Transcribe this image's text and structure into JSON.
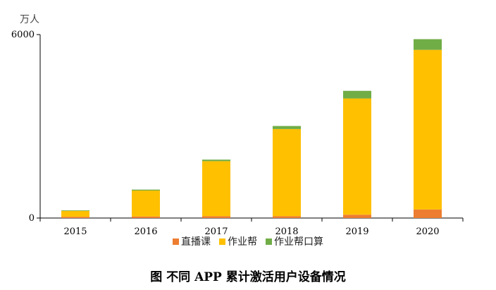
{
  "chart_data": {
    "type": "bar",
    "stacked": true,
    "unit": "万人",
    "categories": [
      "2015",
      "2016",
      "2017",
      "2018",
      "2019",
      "2020"
    ],
    "series": [
      {
        "name": "直播课",
        "color": "#ED7D31",
        "values": [
          40,
          50,
          60,
          60,
          110,
          280
        ]
      },
      {
        "name": "作业帮",
        "color": "#FFC000",
        "values": [
          190,
          850,
          1800,
          2850,
          3800,
          5220
        ]
      },
      {
        "name": "作业帮口算",
        "color": "#70AD47",
        "values": [
          20,
          30,
          50,
          100,
          250,
          350
        ]
      }
    ],
    "ylim": [
      0,
      6000
    ],
    "yticks": [
      0,
      6000
    ],
    "grid": false,
    "legend": "bottom"
  },
  "caption": "图 不同 APP 累计激活用户设备情况"
}
